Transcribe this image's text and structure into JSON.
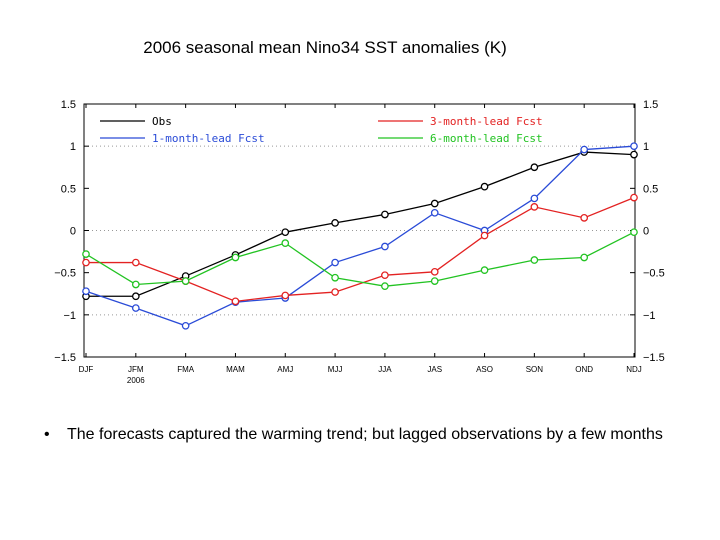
{
  "slide": {
    "title": "2006 seasonal mean Nino34 SST anomalies (K)",
    "bullet": "The forecasts captured the warming trend; but lagged observations by a few months"
  },
  "chart_data": {
    "type": "line",
    "title": "2006 seasonal mean Nino34 SST anomalies (K)",
    "categories": [
      "DJF",
      "JFM",
      "FMA",
      "MAM",
      "AMJ",
      "MJJ",
      "JJA",
      "JAS",
      "ASO",
      "SON",
      "OND",
      "NDJ"
    ],
    "x_sublabel": "2006",
    "ylim": [
      -1.5,
      1.5
    ],
    "yticks": [
      -1.5,
      -1,
      -0.5,
      0,
      0.5,
      1,
      1.5
    ],
    "ytick_labels": [
      "−1.5",
      "−1",
      "−0.5",
      "0",
      "0.5",
      "1",
      "1.5"
    ],
    "dotted_gridlines": [
      -1,
      0,
      1
    ],
    "legend_placement": "top",
    "series": [
      {
        "name": "Obs",
        "color": "#000000",
        "values": [
          -0.78,
          -0.78,
          -0.54,
          -0.29,
          -0.02,
          0.09,
          0.19,
          0.32,
          0.52,
          0.75,
          0.93,
          0.9
        ]
      },
      {
        "name": "1-month-lead Fcst",
        "color": "#2a4bd7",
        "values": [
          -0.72,
          -0.92,
          -1.13,
          -0.85,
          -0.8,
          -0.38,
          -0.19,
          0.21,
          0.0,
          0.38,
          0.96,
          1.0
        ]
      },
      {
        "name": "3-month-lead Fcst",
        "color": "#e32222",
        "values": [
          -0.38,
          -0.38,
          -0.6,
          -0.84,
          -0.77,
          -0.73,
          -0.53,
          -0.49,
          -0.06,
          0.28,
          0.15,
          0.39
        ]
      },
      {
        "name": "6-month-lead Fcst",
        "color": "#22c322",
        "values": [
          -0.28,
          -0.64,
          -0.6,
          -0.32,
          -0.15,
          -0.56,
          -0.66,
          -0.6,
          -0.47,
          -0.35,
          -0.32,
          -0.02
        ]
      }
    ]
  }
}
